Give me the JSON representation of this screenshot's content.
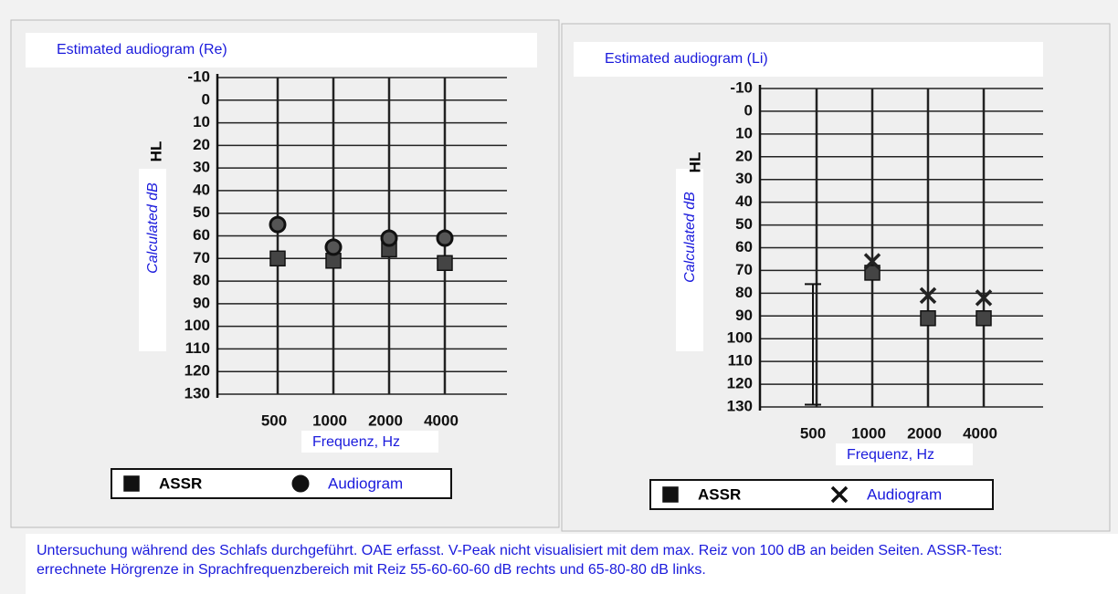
{
  "chart_data": [
    {
      "type": "scatter",
      "title": "Estimated audiogram (Re)",
      "ylabel": "Calculated dB",
      "ylabel_unit": "HL",
      "xlabel": "Frequenz, Hz",
      "categories": [
        "500",
        "1000",
        "2000",
        "4000"
      ],
      "series": [
        {
          "name": "ASSR",
          "color": "#444444",
          "marker": "square",
          "values": [
            70,
            71,
            66,
            72
          ]
        },
        {
          "name": "Audiogram",
          "color": "#555555",
          "marker": "circle",
          "values": [
            55,
            65,
            61,
            61
          ]
        }
      ],
      "ylim": [
        -10,
        130
      ],
      "inverted": true,
      "yticks": [
        -10,
        0,
        10,
        20,
        30,
        40,
        50,
        60,
        70,
        80,
        90,
        100,
        110,
        120,
        130
      ],
      "grid": true
    },
    {
      "type": "scatter",
      "title": "Estimated audiogram (Li)",
      "ylabel": "Calculated dB",
      "ylabel_unit": "HL",
      "xlabel": "Frequenz, Hz",
      "categories": [
        "500",
        "1000",
        "2000",
        "4000"
      ],
      "series": [
        {
          "name": "ASSR",
          "color": "#444444",
          "marker": "square",
          "values": [
            null,
            71,
            91,
            91
          ]
        },
        {
          "name": "Audiogram",
          "color": "#222222",
          "marker": "x",
          "values": [
            null,
            66,
            81,
            82
          ]
        }
      ],
      "ranges": {
        "low": [
          76,
          null,
          null,
          null
        ],
        "high": [
          129,
          null,
          null,
          null
        ]
      },
      "ylim": [
        -10,
        130
      ],
      "inverted": true,
      "yticks": [
        -10,
        0,
        10,
        20,
        30,
        40,
        50,
        60,
        70,
        80,
        90,
        100,
        110,
        120,
        130
      ],
      "grid": true
    }
  ],
  "note": "Untersuchung während des Schlafs durchgeführt. OAE erfasst. V-Peak nicht visualisiert mit dem max. Reiz von 100 dB an beiden Seiten. ASSR-Test: errechnete Hörgrenze in Sprachfrequenzbereich mit Reiz 55-60-60-60 dB rechts und 65-80-80 dB links."
}
